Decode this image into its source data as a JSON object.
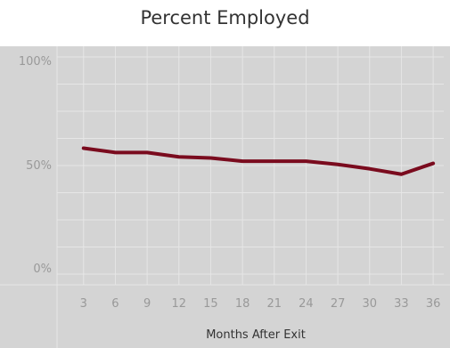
{
  "chart_data": {
    "type": "line",
    "title": "Percent Employed",
    "xlabel": "Months After Exit",
    "ylabel": "",
    "x": [
      3,
      6,
      9,
      12,
      15,
      18,
      21,
      24,
      27,
      30,
      33,
      36
    ],
    "series": [
      {
        "values": [
          58,
          56,
          56,
          54,
          53.5,
          52,
          52,
          52,
          50.5,
          48.5,
          46,
          51
        ]
      }
    ],
    "x_tick_labels": [
      "3",
      "6",
      "9",
      "12",
      "15",
      "18",
      "21",
      "24",
      "27",
      "30",
      "33",
      "36"
    ],
    "y_tick_labels": [
      "100%",
      "50%",
      "0%"
    ],
    "xlim": [
      1,
      37
    ],
    "ylim": [
      0,
      100
    ],
    "y_ticks": [
      100,
      50,
      0
    ],
    "grid": true,
    "colors": {
      "line": "#7a0b1e",
      "panel": "#d4d4d4",
      "grid": "#e6e6e6"
    }
  }
}
